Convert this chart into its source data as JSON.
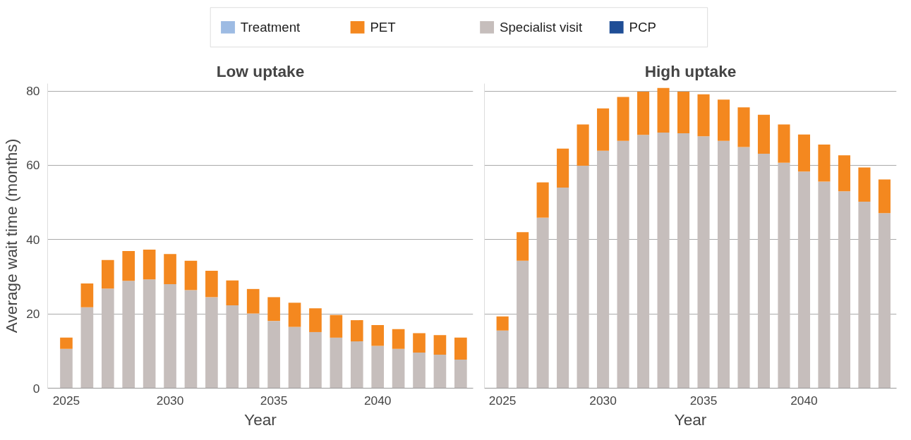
{
  "chart_data": [
    {
      "type": "bar",
      "stacked": true,
      "title": "Low uptake",
      "xlabel": "Year",
      "ylabel": "Average wait time (months)",
      "legend": "top",
      "grid": "y",
      "x": [
        2025,
        2026,
        2027,
        2028,
        2029,
        2030,
        2031,
        2032,
        2033,
        2034,
        2035,
        2036,
        2037,
        2038,
        2039,
        2040,
        2041,
        2042,
        2043,
        2044
      ],
      "xlim": [
        2024.1,
        2044.6
      ],
      "xticks": [
        2025,
        2030,
        2035,
        2040
      ],
      "ylim": [
        0,
        82
      ],
      "yticks": [
        0,
        20,
        40,
        60,
        80
      ],
      "series": [
        {
          "name": "PCP",
          "color": "#1f4e96",
          "values": [
            0,
            0,
            0,
            0,
            0,
            0,
            0,
            0,
            0,
            0,
            0,
            0,
            0,
            0,
            0,
            0,
            0,
            0,
            0,
            0
          ]
        },
        {
          "name": "Specialist visit",
          "color": "#c6bebc",
          "values": [
            10.6,
            21.8,
            26.8,
            28.9,
            29.3,
            28.0,
            26.4,
            24.5,
            22.3,
            20.1,
            18.1,
            16.5,
            15.1,
            13.6,
            12.6,
            11.4,
            10.6,
            9.6,
            9.0,
            7.7
          ]
        },
        {
          "name": "PET",
          "color": "#f4881f",
          "values": [
            3.0,
            6.4,
            7.7,
            8.0,
            8.0,
            8.1,
            7.9,
            7.1,
            6.7,
            6.6,
            6.4,
            6.5,
            6.4,
            6.1,
            5.7,
            5.6,
            5.3,
            5.2,
            5.3,
            5.9
          ]
        },
        {
          "name": "Treatment",
          "color": "#9dbbe3",
          "values": [
            0,
            0,
            0,
            0,
            0,
            0,
            0,
            0,
            0,
            0,
            0,
            0,
            0,
            0,
            0,
            0,
            0,
            0,
            0,
            0
          ]
        }
      ]
    },
    {
      "type": "bar",
      "stacked": true,
      "title": "High uptake",
      "xlabel": "Year",
      "grid": "y",
      "tick_labels": "x",
      "x": [
        2025,
        2026,
        2027,
        2028,
        2029,
        2030,
        2031,
        2032,
        2033,
        2034,
        2035,
        2036,
        2037,
        2038,
        2039,
        2040,
        2041,
        2042,
        2043,
        2044
      ],
      "xlim": [
        2024.1,
        2044.6
      ],
      "xticks": [
        2025,
        2030,
        2035,
        2040
      ],
      "ylim": [
        0,
        82
      ],
      "yticks": [
        0,
        20,
        40,
        60,
        80
      ],
      "series": [
        {
          "color": "#1f4e96",
          "values": [
            0,
            0,
            0,
            0,
            0,
            0,
            0,
            0,
            0,
            0,
            0,
            0,
            0,
            0,
            0,
            0,
            0,
            0,
            0,
            0
          ]
        },
        {
          "color": "#c6bebc",
          "values": [
            15.5,
            34.3,
            45.9,
            54.0,
            59.9,
            63.9,
            66.6,
            68.2,
            68.8,
            68.6,
            67.8,
            66.6,
            64.9,
            63.1,
            60.7,
            58.3,
            55.6,
            53.0,
            50.2,
            47.1
          ]
        },
        {
          "color": "#f4881f",
          "values": [
            3.8,
            7.7,
            9.5,
            10.5,
            11.1,
            11.4,
            11.8,
            11.6,
            12.0,
            11.2,
            11.3,
            11.1,
            10.7,
            10.5,
            10.3,
            10.0,
            10.0,
            9.7,
            9.2,
            9.1
          ]
        },
        {
          "color": "#9dbbe3",
          "values": [
            0,
            0,
            0,
            0,
            0,
            0,
            0,
            0,
            0,
            0,
            0,
            0,
            0,
            0,
            0,
            0,
            0,
            0,
            0,
            0
          ]
        }
      ]
    }
  ]
}
